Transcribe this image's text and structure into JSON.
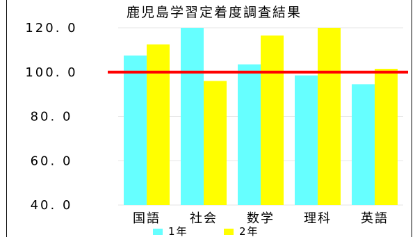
{
  "chart_data": {
    "type": "bar",
    "title": "鹿児島学習定着度調査結果",
    "categories": [
      "国語",
      "社会",
      "数学",
      "理科",
      "英語"
    ],
    "series": [
      {
        "name": "1年",
        "color": "#66FFFF",
        "values": [
          107.5,
          120.0,
          103.5,
          98.5,
          94.5
        ]
      },
      {
        "name": "2年",
        "color": "#FFFF00",
        "values": [
          112.5,
          96.0,
          116.5,
          120.0,
          101.5
        ]
      }
    ],
    "reference_line": {
      "value": 100.0,
      "color": "#FF0000"
    },
    "ylim": [
      40,
      120
    ],
    "yticks": [
      120,
      100,
      80,
      60,
      40
    ],
    "ytick_labels": [
      "120. 0",
      "100. 0",
      "80. 0",
      "60. 0",
      "40. 0"
    ],
    "grid": true,
    "legend_position": "bottom"
  }
}
